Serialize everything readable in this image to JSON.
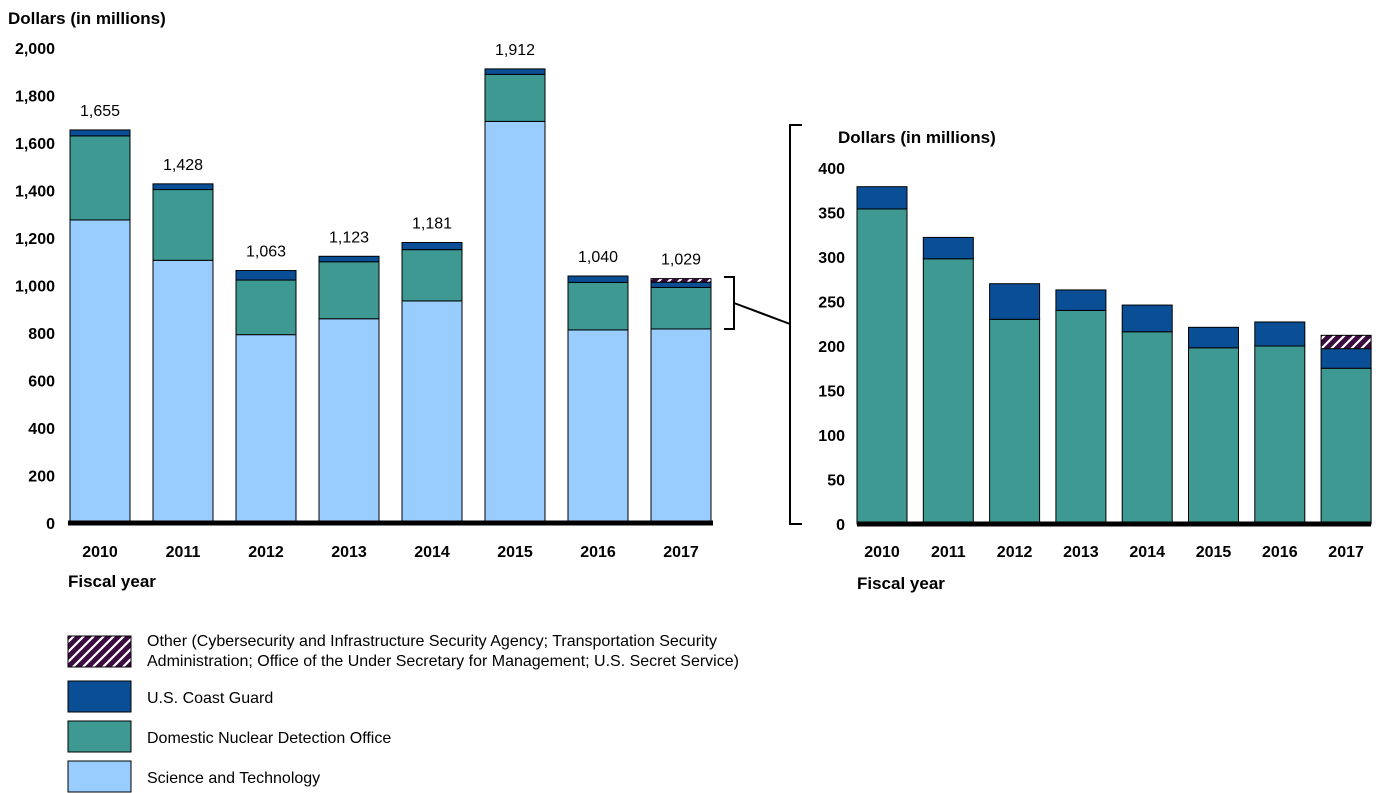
{
  "colors": {
    "science_and_technology": "#99ccff",
    "domestic_nuclear_detection_office": "#3d9991",
    "coast_guard": "#0a4f96",
    "other": "#3b0a3e",
    "other_hatch": "#ffffff",
    "baseline": "#000000"
  },
  "chart_data": [
    {
      "type": "bar",
      "stacked": true,
      "ylabel": "Dollars (in millions)",
      "xlabel": "Fiscal year",
      "ylim": [
        0,
        2000
      ],
      "yticks": [
        "0",
        "200",
        "400",
        "600",
        "800",
        "1,000",
        "1,200",
        "1,400",
        "1,600",
        "1,800",
        "2,000"
      ],
      "categories": [
        "2010",
        "2011",
        "2012",
        "2013",
        "2014",
        "2015",
        "2016",
        "2017"
      ],
      "totals": [
        "1,655",
        "1,428",
        "1,063",
        "1,123",
        "1,181",
        "1,912",
        "1,040",
        "1,029"
      ],
      "series": [
        {
          "name": "Science and Technology",
          "key": "science_and_technology",
          "values": [
            1276,
            1106,
            793,
            860,
            935,
            1691,
            813,
            817
          ]
        },
        {
          "name": "Domestic Nuclear Detection Office",
          "key": "domestic_nuclear_detection_office",
          "values": [
            354,
            298,
            230,
            240,
            216,
            198,
            200,
            175
          ]
        },
        {
          "name": "U.S. Coast Guard",
          "key": "coast_guard",
          "values": [
            25,
            24,
            40,
            23,
            30,
            23,
            27,
            22
          ]
        },
        {
          "name": "Other (Cybersecurity and Infrastructure Security Agency; Transportation Security Administration; Office of the Under Secretary for Management; U.S. Secret Service)",
          "key": "other",
          "values": [
            0,
            0,
            0,
            0,
            0,
            0,
            0,
            15
          ]
        }
      ]
    },
    {
      "type": "bar",
      "stacked": true,
      "ylabel": "Dollars (in millions)",
      "xlabel": "Fiscal year",
      "ylim": [
        0,
        400
      ],
      "yticks": [
        "0",
        "50",
        "100",
        "150",
        "200",
        "250",
        "300",
        "350",
        "400"
      ],
      "categories": [
        "2010",
        "2011",
        "2012",
        "2013",
        "2014",
        "2015",
        "2016",
        "2017"
      ],
      "series": [
        {
          "name": "Domestic Nuclear Detection Office",
          "key": "domestic_nuclear_detection_office",
          "values": [
            354,
            298,
            230,
            240,
            216,
            198,
            200,
            175
          ]
        },
        {
          "name": "U.S. Coast Guard",
          "key": "coast_guard",
          "values": [
            25,
            24,
            40,
            23,
            30,
            23,
            27,
            22
          ]
        },
        {
          "name": "Other (Cybersecurity and Infrastructure Security Agency; Transportation Security Administration; Office of the Under Secretary for Management; U.S. Secret Service)",
          "key": "other",
          "values": [
            0,
            0,
            0,
            0,
            0,
            0,
            0,
            15
          ]
        }
      ]
    }
  ],
  "legend": {
    "items": [
      {
        "key": "other",
        "hatched": true,
        "lines": [
          "Other (Cybersecurity and Infrastructure Security Agency; Transportation Security",
          "Administration; Office of the Under Secretary for Management; U.S. Secret Service)"
        ]
      },
      {
        "key": "coast_guard",
        "hatched": false,
        "lines": [
          "U.S. Coast Guard"
        ]
      },
      {
        "key": "domestic_nuclear_detection_office",
        "hatched": false,
        "lines": [
          "Domestic Nuclear Detection Office"
        ]
      },
      {
        "key": "science_and_technology",
        "hatched": false,
        "lines": [
          "Science and Technology"
        ]
      }
    ]
  }
}
